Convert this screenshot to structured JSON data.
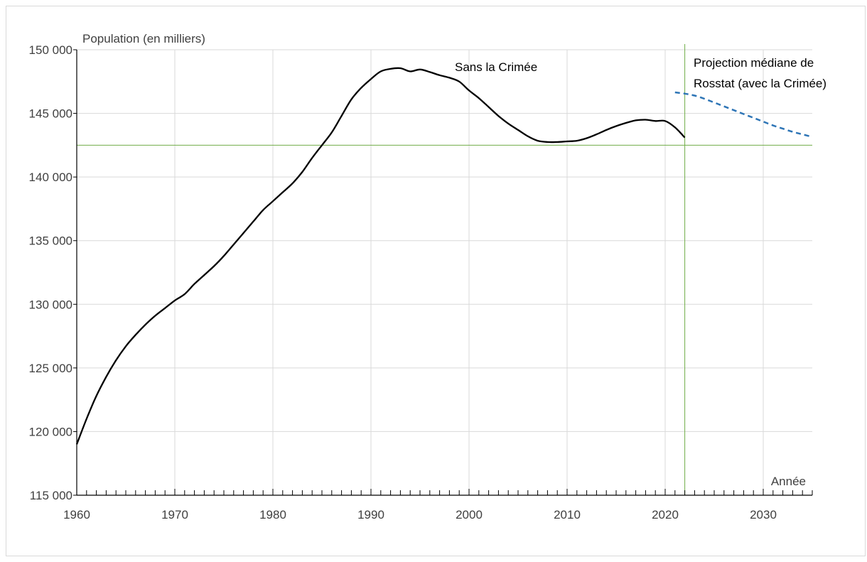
{
  "chart_data": {
    "type": "line",
    "title": "",
    "ylabel": "Population (en milliers)",
    "xlabel": "Année",
    "xlim": [
      1960,
      2035
    ],
    "ylim": [
      115000,
      150000
    ],
    "x_ticks": [
      1960,
      1970,
      1980,
      1990,
      2000,
      2010,
      2020,
      2030
    ],
    "x_tick_labels": [
      "1960",
      "1970",
      "1980",
      "1990",
      "2000",
      "2010",
      "2020",
      "2030"
    ],
    "y_ticks": [
      115000,
      120000,
      125000,
      130000,
      135000,
      140000,
      145000,
      150000
    ],
    "y_tick_labels": [
      "115 000",
      "120 000",
      "125 000",
      "130 000",
      "135 000",
      "140 000",
      "145 000",
      "150 000"
    ],
    "grid": true,
    "reference_lines": {
      "horizontal_y": 142500,
      "vertical_x": 2022,
      "color": "#70ad47"
    },
    "series": [
      {
        "name": "Sans la Crimée",
        "color": "#000000",
        "style": "solid",
        "points": [
          [
            1960,
            119000
          ],
          [
            1961,
            121000
          ],
          [
            1962,
            122800
          ],
          [
            1963,
            124300
          ],
          [
            1964,
            125600
          ],
          [
            1965,
            126700
          ],
          [
            1966,
            127600
          ],
          [
            1967,
            128400
          ],
          [
            1968,
            129100
          ],
          [
            1969,
            129700
          ],
          [
            1970,
            130300
          ],
          [
            1971,
            130800
          ],
          [
            1972,
            131600
          ],
          [
            1973,
            132300
          ],
          [
            1974,
            133000
          ],
          [
            1975,
            133800
          ],
          [
            1976,
            134700
          ],
          [
            1977,
            135600
          ],
          [
            1978,
            136500
          ],
          [
            1979,
            137400
          ],
          [
            1980,
            138100
          ],
          [
            1981,
            138800
          ],
          [
            1982,
            139500
          ],
          [
            1983,
            140400
          ],
          [
            1984,
            141500
          ],
          [
            1985,
            142500
          ],
          [
            1986,
            143500
          ],
          [
            1987,
            144800
          ],
          [
            1988,
            146100
          ],
          [
            1989,
            147000
          ],
          [
            1990,
            147700
          ],
          [
            1991,
            148300
          ],
          [
            1992,
            148500
          ],
          [
            1993,
            148550
          ],
          [
            1994,
            148300
          ],
          [
            1995,
            148450
          ],
          [
            1996,
            148250
          ],
          [
            1997,
            148000
          ],
          [
            1998,
            147800
          ],
          [
            1999,
            147500
          ],
          [
            2000,
            146800
          ],
          [
            2001,
            146200
          ],
          [
            2002,
            145500
          ],
          [
            2003,
            144800
          ],
          [
            2004,
            144200
          ],
          [
            2005,
            143700
          ],
          [
            2006,
            143200
          ],
          [
            2007,
            142850
          ],
          [
            2008,
            142750
          ],
          [
            2009,
            142750
          ],
          [
            2010,
            142800
          ],
          [
            2011,
            142850
          ],
          [
            2012,
            143050
          ],
          [
            2013,
            143350
          ],
          [
            2014,
            143700
          ],
          [
            2015,
            144000
          ],
          [
            2016,
            144250
          ],
          [
            2017,
            144450
          ],
          [
            2018,
            144500
          ],
          [
            2019,
            144400
          ],
          [
            2020,
            144400
          ],
          [
            2021,
            143900
          ],
          [
            2022,
            143100
          ]
        ]
      },
      {
        "name": "Projection médiane de Rosstat (avec la Crimée)",
        "color": "#2e75b6",
        "style": "dashed",
        "points": [
          [
            2021,
            146650
          ],
          [
            2022,
            146550
          ],
          [
            2023,
            146400
          ],
          [
            2024,
            146150
          ],
          [
            2025,
            145850
          ],
          [
            2026,
            145550
          ],
          [
            2027,
            145250
          ],
          [
            2028,
            144950
          ],
          [
            2029,
            144650
          ],
          [
            2030,
            144350
          ],
          [
            2031,
            144050
          ],
          [
            2032,
            143800
          ],
          [
            2033,
            143550
          ],
          [
            2034,
            143350
          ],
          [
            2035,
            143150
          ]
        ]
      }
    ],
    "annotations": [
      {
        "text": "Sans la Crimée",
        "x": 1990,
        "y": 147900
      },
      {
        "text": "Projection médiane de",
        "x": 2022,
        "y": 149200
      },
      {
        "text": "Rosstat (avec la Crimée)",
        "x": 2022,
        "y": 147700
      }
    ]
  }
}
